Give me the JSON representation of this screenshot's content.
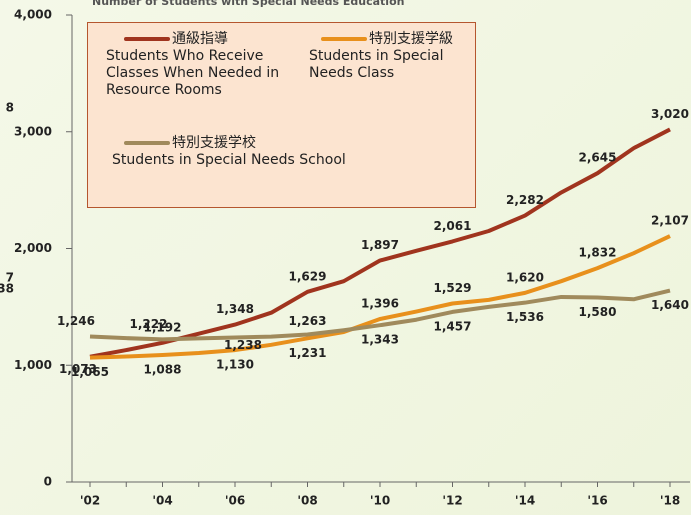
{
  "chart_data": {
    "type": "line",
    "title": "Number of Students with Special Needs Education",
    "categories": [
      "'02",
      null,
      "'04",
      null,
      "'06",
      null,
      "'08",
      null,
      "'10",
      null,
      "'12",
      null,
      "'14",
      null,
      "'16",
      null,
      "'18"
    ],
    "ylim": [
      0,
      4000
    ],
    "yticks": [
      0,
      {
        "value": 1000,
        "label": "1,000"
      },
      {
        "value": 2000,
        "label": "2,000"
      },
      {
        "value": 3000,
        "label": "3,000"
      },
      {
        "value": 4000,
        "label": "4,000"
      }
    ],
    "annotations": [
      "8",
      "7",
      "38"
    ],
    "series": [
      {
        "name": "通級指導",
        "name_en": "Students Who Receive Classes When Needed in Resource Rooms",
        "color": "#a0341e",
        "values": [
          1073,
          1130,
          1192,
          1270,
          1348,
          1450,
          1629,
          1720,
          1897,
          1980,
          2061,
          2150,
          2282,
          2480,
          2645,
          2860,
          3020
        ],
        "value_labels": [
          "1,073",
          null,
          "1,192",
          null,
          "1,348",
          null,
          "1,629",
          null,
          "1,897",
          null,
          "2,061",
          null,
          "2,282",
          null,
          "2,645",
          null,
          "3,020"
        ]
      },
      {
        "name": "特別支援学級",
        "name_en": "Students in Special Needs Class",
        "color": "#e8901c",
        "values": [
          1065,
          1075,
          1088,
          1105,
          1130,
          1175,
          1231,
          1285,
          1396,
          1460,
          1529,
          1560,
          1620,
          1720,
          1832,
          1960,
          2107
        ],
        "value_labels": [
          "1,065",
          null,
          "1,088",
          null,
          "1,130",
          null,
          "1,231",
          null,
          "1,396",
          null,
          "1,529",
          null,
          "1,620",
          null,
          "1,832",
          null,
          "2,107"
        ]
      },
      {
        "name": "特別支援学校",
        "name_en": "Students in Special Needs School",
        "color": "#a08a5c",
        "values": [
          1246,
          1232,
          1222,
          1230,
          1238,
          1245,
          1263,
          1300,
          1343,
          1390,
          1457,
          1500,
          1536,
          1585,
          1580,
          1565,
          1640
        ],
        "value_labels": [
          "1,246",
          null,
          "1,222",
          null,
          "1,238",
          null,
          "1,263",
          null,
          "1,343",
          null,
          "1,457",
          null,
          "1,536",
          null,
          "1,580",
          null,
          "1,640"
        ]
      }
    ]
  }
}
